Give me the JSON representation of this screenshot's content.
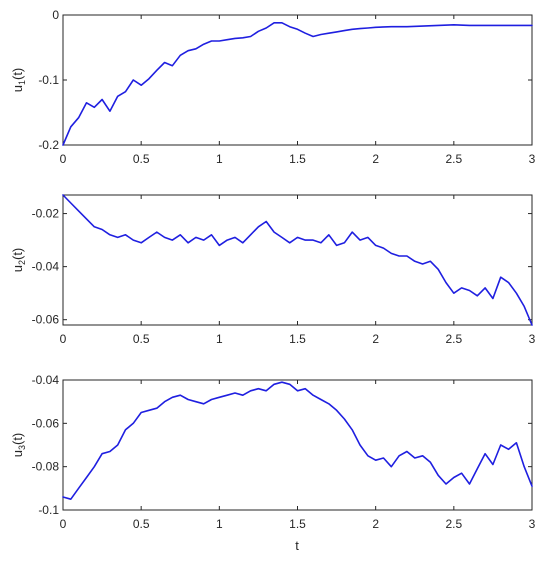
{
  "figure": {
    "line_color": "#1f1fe0",
    "axis_color": "#262626"
  },
  "chart_data": [
    {
      "type": "line",
      "title": "",
      "xlabel": "",
      "ylabel": {
        "base": "u",
        "sub": "1",
        "arg": "(t)"
      },
      "xlim": [
        0,
        3
      ],
      "ylim": [
        -0.2,
        0
      ],
      "xticks": [
        0,
        0.5,
        1,
        1.5,
        2,
        2.5,
        3
      ],
      "xtick_labels": [
        "0",
        "0.5",
        "1",
        "1.5",
        "2",
        "2.5",
        "3"
      ],
      "yticks": [
        -0.2,
        -0.1,
        0
      ],
      "ytick_labels": [
        "-0.2",
        "-0.1",
        "0"
      ],
      "grid": false,
      "series": [
        {
          "x": [
            0,
            0.05,
            0.1,
            0.15,
            0.2,
            0.25,
            0.3,
            0.35,
            0.4,
            0.45,
            0.5,
            0.55,
            0.6,
            0.65,
            0.7,
            0.75,
            0.8,
            0.85,
            0.9,
            0.95,
            1.0,
            1.05,
            1.1,
            1.15,
            1.2,
            1.25,
            1.3,
            1.35,
            1.4,
            1.45,
            1.5,
            1.55,
            1.6,
            1.65,
            1.7,
            1.75,
            1.8,
            1.85,
            1.9,
            1.95,
            2.0,
            2.1,
            2.2,
            2.3,
            2.4,
            2.5,
            2.6,
            2.7,
            2.8,
            2.9,
            3.0
          ],
          "values": [
            -0.2,
            -0.172,
            -0.158,
            -0.135,
            -0.142,
            -0.13,
            -0.148,
            -0.125,
            -0.118,
            -0.1,
            -0.108,
            -0.098,
            -0.085,
            -0.073,
            -0.078,
            -0.062,
            -0.055,
            -0.052,
            -0.045,
            -0.04,
            -0.04,
            -0.038,
            -0.036,
            -0.035,
            -0.033,
            -0.025,
            -0.02,
            -0.012,
            -0.012,
            -0.018,
            -0.022,
            -0.028,
            -0.033,
            -0.03,
            -0.028,
            -0.026,
            -0.024,
            -0.022,
            -0.021,
            -0.02,
            -0.019,
            -0.018,
            -0.018,
            -0.017,
            -0.016,
            -0.015,
            -0.016,
            -0.016,
            -0.016,
            -0.016,
            -0.016
          ]
        }
      ]
    },
    {
      "type": "line",
      "title": "",
      "xlabel": "",
      "ylabel": {
        "base": "u",
        "sub": "2",
        "arg": "(t)"
      },
      "xlim": [
        0,
        3
      ],
      "ylim": [
        -0.062,
        -0.013
      ],
      "xticks": [
        0,
        0.5,
        1,
        1.5,
        2,
        2.5,
        3
      ],
      "xtick_labels": [
        "0",
        "0.5",
        "1",
        "1.5",
        "2",
        "2.5",
        "3"
      ],
      "yticks": [
        -0.06,
        -0.04,
        -0.02
      ],
      "ytick_labels": [
        "-0.06",
        "-0.04",
        "-0.02"
      ],
      "grid": false,
      "series": [
        {
          "x": [
            0,
            0.05,
            0.1,
            0.15,
            0.2,
            0.25,
            0.3,
            0.35,
            0.4,
            0.45,
            0.5,
            0.55,
            0.6,
            0.65,
            0.7,
            0.75,
            0.8,
            0.85,
            0.9,
            0.95,
            1.0,
            1.05,
            1.1,
            1.15,
            1.2,
            1.25,
            1.3,
            1.35,
            1.4,
            1.45,
            1.5,
            1.55,
            1.6,
            1.65,
            1.7,
            1.75,
            1.8,
            1.85,
            1.9,
            1.95,
            2.0,
            2.05,
            2.1,
            2.15,
            2.2,
            2.25,
            2.3,
            2.35,
            2.4,
            2.45,
            2.5,
            2.55,
            2.6,
            2.65,
            2.7,
            2.75,
            2.8,
            2.85,
            2.9,
            2.95,
            3.0
          ],
          "values": [
            -0.013,
            -0.016,
            -0.019,
            -0.022,
            -0.025,
            -0.026,
            -0.028,
            -0.029,
            -0.028,
            -0.03,
            -0.031,
            -0.029,
            -0.027,
            -0.029,
            -0.03,
            -0.028,
            -0.031,
            -0.029,
            -0.03,
            -0.028,
            -0.032,
            -0.03,
            -0.029,
            -0.031,
            -0.028,
            -0.025,
            -0.023,
            -0.027,
            -0.029,
            -0.031,
            -0.029,
            -0.03,
            -0.03,
            -0.031,
            -0.028,
            -0.032,
            -0.031,
            -0.027,
            -0.03,
            -0.029,
            -0.032,
            -0.033,
            -0.035,
            -0.036,
            -0.036,
            -0.038,
            -0.039,
            -0.038,
            -0.041,
            -0.046,
            -0.05,
            -0.048,
            -0.049,
            -0.051,
            -0.048,
            -0.052,
            -0.044,
            -0.046,
            -0.05,
            -0.055,
            -0.062
          ]
        }
      ]
    },
    {
      "type": "line",
      "title": "",
      "xlabel": "t",
      "ylabel": {
        "base": "u",
        "sub": "3",
        "arg": "(t)"
      },
      "xlim": [
        0,
        3
      ],
      "ylim": [
        -0.1,
        -0.04
      ],
      "xticks": [
        0,
        0.5,
        1,
        1.5,
        2,
        2.5,
        3
      ],
      "xtick_labels": [
        "0",
        "0.5",
        "1",
        "1.5",
        "2",
        "2.5",
        "3"
      ],
      "yticks": [
        -0.1,
        -0.08,
        -0.06,
        -0.04
      ],
      "ytick_labels": [
        "-0.1",
        "-0.08",
        "-0.06",
        "-0.04"
      ],
      "grid": false,
      "series": [
        {
          "x": [
            0,
            0.05,
            0.1,
            0.15,
            0.2,
            0.25,
            0.3,
            0.35,
            0.4,
            0.45,
            0.5,
            0.55,
            0.6,
            0.65,
            0.7,
            0.75,
            0.8,
            0.85,
            0.9,
            0.95,
            1.0,
            1.05,
            1.1,
            1.15,
            1.2,
            1.25,
            1.3,
            1.35,
            1.4,
            1.45,
            1.5,
            1.55,
            1.6,
            1.65,
            1.7,
            1.75,
            1.8,
            1.85,
            1.9,
            1.95,
            2.0,
            2.05,
            2.1,
            2.15,
            2.2,
            2.25,
            2.3,
            2.35,
            2.4,
            2.45,
            2.5,
            2.55,
            2.6,
            2.65,
            2.7,
            2.75,
            2.8,
            2.85,
            2.9,
            2.95,
            3.0
          ],
          "values": [
            -0.094,
            -0.095,
            -0.09,
            -0.085,
            -0.08,
            -0.074,
            -0.073,
            -0.07,
            -0.063,
            -0.06,
            -0.055,
            -0.054,
            -0.053,
            -0.05,
            -0.048,
            -0.047,
            -0.049,
            -0.05,
            -0.051,
            -0.049,
            -0.048,
            -0.047,
            -0.046,
            -0.047,
            -0.045,
            -0.044,
            -0.045,
            -0.042,
            -0.041,
            -0.042,
            -0.045,
            -0.044,
            -0.047,
            -0.049,
            -0.051,
            -0.054,
            -0.058,
            -0.063,
            -0.07,
            -0.075,
            -0.077,
            -0.076,
            -0.08,
            -0.075,
            -0.073,
            -0.076,
            -0.075,
            -0.078,
            -0.084,
            -0.088,
            -0.085,
            -0.083,
            -0.088,
            -0.081,
            -0.074,
            -0.079,
            -0.07,
            -0.072,
            -0.069,
            -0.08,
            -0.089
          ]
        }
      ]
    }
  ]
}
